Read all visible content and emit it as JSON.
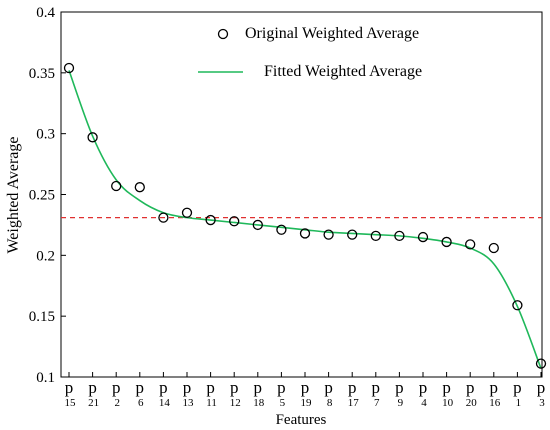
{
  "chart_data": {
    "type": "scatter",
    "xlabel": "Features",
    "ylabel": "Weighted Average",
    "ylim": [
      0.1,
      0.4
    ],
    "yticks": [
      0.1,
      0.15,
      0.2,
      0.25,
      0.3,
      0.35,
      0.4
    ],
    "categories": [
      {
        "base": "p",
        "sub": "15"
      },
      {
        "base": "p",
        "sub": "21"
      },
      {
        "base": "p",
        "sub": "2"
      },
      {
        "base": "p",
        "sub": "6"
      },
      {
        "base": "p",
        "sub": "14"
      },
      {
        "base": "p",
        "sub": "13"
      },
      {
        "base": "p",
        "sub": "11"
      },
      {
        "base": "p",
        "sub": "12"
      },
      {
        "base": "p",
        "sub": "18"
      },
      {
        "base": "p",
        "sub": "5"
      },
      {
        "base": "p",
        "sub": "19"
      },
      {
        "base": "p",
        "sub": "8"
      },
      {
        "base": "p",
        "sub": "17"
      },
      {
        "base": "p",
        "sub": "7"
      },
      {
        "base": "p",
        "sub": "9"
      },
      {
        "base": "p",
        "sub": "4"
      },
      {
        "base": "p",
        "sub": "10"
      },
      {
        "base": "p",
        "sub": "20"
      },
      {
        "base": "p",
        "sub": "16"
      },
      {
        "base": "p",
        "sub": "1"
      },
      {
        "base": "p",
        "sub": "3"
      }
    ],
    "series": [
      {
        "name": "Original Weighted Average",
        "kind": "markers",
        "marker": "open-circle",
        "color": "#000000",
        "values": [
          0.354,
          0.297,
          0.257,
          0.256,
          0.231,
          0.235,
          0.229,
          0.228,
          0.225,
          0.221,
          0.218,
          0.217,
          0.217,
          0.216,
          0.216,
          0.215,
          0.211,
          0.209,
          0.206,
          0.159,
          0.111
        ]
      },
      {
        "name": "Fitted Weighted Average",
        "kind": "line",
        "color": "#1fb85a",
        "values": [
          0.352,
          0.298,
          0.262,
          0.245,
          0.235,
          0.231,
          0.229,
          0.227,
          0.225,
          0.223,
          0.221,
          0.219,
          0.218,
          0.217,
          0.216,
          0.214,
          0.211,
          0.206,
          0.193,
          0.158,
          0.107
        ]
      }
    ],
    "reference_line": {
      "value": 0.231,
      "style": "dashed",
      "color": "#e03030"
    },
    "legend": {
      "placement": "top-right"
    }
  }
}
